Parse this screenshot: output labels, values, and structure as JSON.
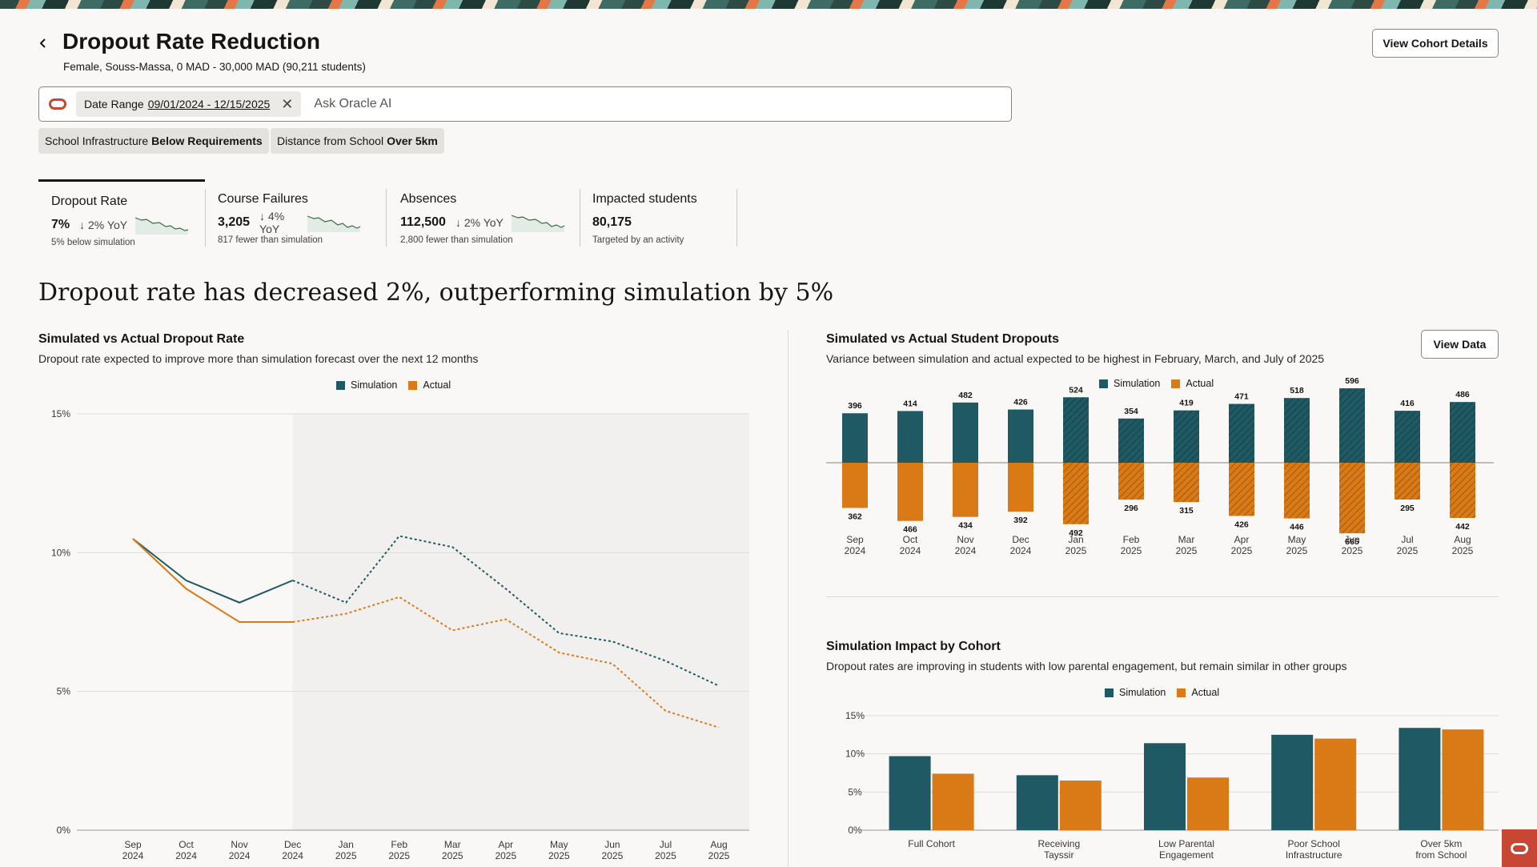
{
  "colors": {
    "simulation": "#1f5963",
    "actual": "#d97a16",
    "accent": "#c74634"
  },
  "header": {
    "back_icon": "chevron-left-icon",
    "title": "Dropout Rate Reduction",
    "subtitle": "Female, Souss-Massa, 0 MAD - 30,000 MAD (90,211 students)",
    "view_cohort_label": "View Cohort Details"
  },
  "search": {
    "chip_label": "Date Range",
    "chip_value": "09/01/2024 - 12/15/2025",
    "placeholder": "Ask Oracle AI"
  },
  "filters": [
    {
      "label": "School Infrastructure",
      "value": "Below Requirements"
    },
    {
      "label": "Distance from School",
      "value": "Over 5km"
    }
  ],
  "kpis": [
    {
      "label": "Dropout Rate",
      "value": "7%",
      "trend": "↓ 2% YoY",
      "note": "5% below simulation"
    },
    {
      "label": "Course Failures",
      "value": "3,205",
      "trend": "↓ 4% YoY",
      "note": "817 fewer than simulation"
    },
    {
      "label": "Absences",
      "value": "112,500",
      "trend": "↓ 2% YoY",
      "note": "2,800 fewer than simulation"
    },
    {
      "label": "Impacted students",
      "value": "80,175",
      "trend": "",
      "note": "Targeted by an activity"
    }
  ],
  "headline": "Dropout rate has decreased 2%, outperforming simulation by 5%",
  "line_section": {
    "title": "Simulated vs Actual Dropout Rate",
    "description": "Dropout rate expected to improve more than simulation forecast over the next 12 months"
  },
  "dropouts_section": {
    "title": "Simulated vs Actual Student Dropouts",
    "description": "Variance between simulation and actual expected to be highest in February, March, and July of 2025",
    "view_data_label": "View Data"
  },
  "cohort_section": {
    "title": "Simulation Impact by Cohort",
    "description": "Dropout rates are improving in students with low parental engagement, but remain similar in other groups"
  },
  "legend": {
    "simulation": "Simulation",
    "actual": "Actual"
  },
  "chart_data": [
    {
      "type": "line",
      "title": "Simulated vs Actual Dropout Rate",
      "x": [
        "Sep\n2024",
        "Oct\n2024",
        "Nov\n2024",
        "Dec\n2024",
        "Jan\n2025",
        "Feb\n2025",
        "Mar\n2025",
        "Apr\n2025",
        "May\n2025",
        "Jun\n2025",
        "Jul\n2025",
        "Aug\n2025"
      ],
      "series": [
        {
          "name": "Simulation",
          "values": [
            10.5,
            9.0,
            8.2,
            9.0,
            8.2,
            10.6,
            10.2,
            8.7,
            7.1,
            6.8,
            6.1,
            5.2
          ]
        },
        {
          "name": "Actual",
          "values": [
            10.5,
            8.7,
            7.5,
            7.5,
            7.8,
            8.4,
            7.2,
            7.6,
            6.4,
            6.0,
            4.3,
            3.7
          ]
        }
      ],
      "forecast_start_index": 3,
      "yticks": [
        "0%",
        "5%",
        "10%",
        "15%"
      ],
      "ylim": [
        0,
        15
      ],
      "grid": true
    },
    {
      "type": "bar",
      "title": "Simulated vs Actual Student Dropouts",
      "categories": [
        "Sep\n2024",
        "Oct\n2024",
        "Nov\n2024",
        "Dec\n2024",
        "Jan\n2025",
        "Feb\n2025",
        "Mar\n2025",
        "Apr\n2025",
        "May\n2025",
        "Jun\n2025",
        "Jul\n2025",
        "Aug\n2025"
      ],
      "series": [
        {
          "name": "Simulation",
          "values": [
            396,
            414,
            482,
            426,
            524,
            354,
            419,
            471,
            518,
            596,
            416,
            486
          ]
        },
        {
          "name": "Actual",
          "values": [
            362,
            466,
            434,
            392,
            492,
            296,
            315,
            426,
            446,
            565,
            295,
            442
          ]
        }
      ],
      "forecast_start_index": 4,
      "ylim": [
        0,
        600
      ]
    },
    {
      "type": "bar",
      "title": "Simulation Impact by Cohort",
      "categories": [
        "Full Cohort",
        "Receiving\nTayssir",
        "Low Parental\nEngagement",
        "Poor School\nInfrastructure",
        "Over 5km\nfrom School"
      ],
      "series": [
        {
          "name": "Simulation",
          "values": [
            9.7,
            7.2,
            11.4,
            12.5,
            13.4
          ]
        },
        {
          "name": "Actual",
          "values": [
            7.4,
            6.5,
            6.9,
            12.0,
            13.2
          ]
        }
      ],
      "yticks": [
        "0%",
        "5%",
        "10%",
        "15%"
      ],
      "ylim": [
        0,
        15
      ],
      "grid": true
    }
  ]
}
